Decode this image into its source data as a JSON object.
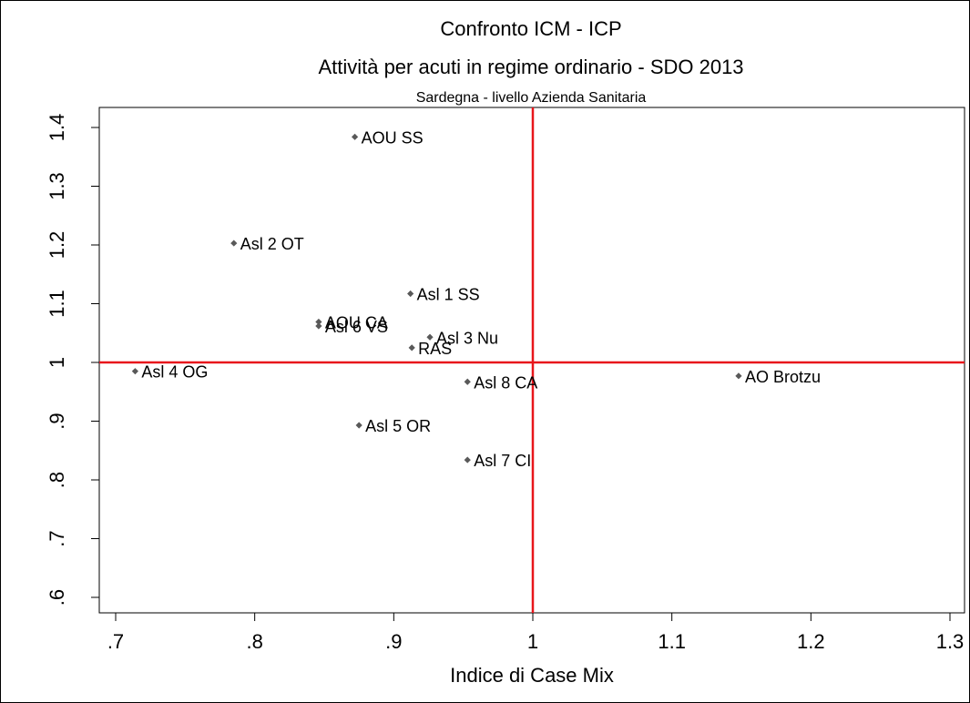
{
  "chart_data": {
    "type": "scatter",
    "title": "Confronto ICM - ICP",
    "subtitle": "Attività per acuti in regime ordinario - SDO 2013",
    "subtitle2": "Sardegna - livello Azienda Sanitaria",
    "xlabel": "Indice di Case Mix",
    "ylabel": "",
    "xlim": [
      0.7,
      1.3
    ],
    "ylim": [
      0.6,
      1.4
    ],
    "xticks": [
      {
        "value": 0.7,
        "label": ".7"
      },
      {
        "value": 0.8,
        "label": ".8"
      },
      {
        "value": 0.9,
        "label": ".9"
      },
      {
        "value": 1.0,
        "label": "1"
      },
      {
        "value": 1.1,
        "label": "1.1"
      },
      {
        "value": 1.2,
        "label": "1.2"
      },
      {
        "value": 1.3,
        "label": "1.3"
      }
    ],
    "yticks": [
      {
        "value": 0.6,
        "label": ".6"
      },
      {
        "value": 0.7,
        "label": ".7"
      },
      {
        "value": 0.8,
        "label": ".8"
      },
      {
        "value": 0.9,
        "label": ".9"
      },
      {
        "value": 1.0,
        "label": "1"
      },
      {
        "value": 1.1,
        "label": "1.1"
      },
      {
        "value": 1.2,
        "label": "1.2"
      },
      {
        "value": 1.3,
        "label": "1.3"
      },
      {
        "value": 1.4,
        "label": "1.4"
      }
    ],
    "reference_lines": {
      "x": 1.0,
      "y": 1.0,
      "color": "#e8161b"
    },
    "grid": false,
    "marker_color": "#595959",
    "points": [
      {
        "label": "AOU SS",
        "x": 0.872,
        "y": 1.384
      },
      {
        "label": "Asl 2 OT",
        "x": 0.785,
        "y": 1.203
      },
      {
        "label": "Asl 1 SS",
        "x": 0.912,
        "y": 1.117
      },
      {
        "label": "AOU CA",
        "x": 0.846,
        "y": 1.069
      },
      {
        "label": "Asl 6 VS",
        "x": 0.846,
        "y": 1.062
      },
      {
        "label": "Asl 3 Nu",
        "x": 0.926,
        "y": 1.043
      },
      {
        "label": "RAS",
        "x": 0.913,
        "y": 1.025
      },
      {
        "label": "Asl 4 OG",
        "x": 0.714,
        "y": 0.985
      },
      {
        "label": "AO Brotzu",
        "x": 1.148,
        "y": 0.977
      },
      {
        "label": "Asl 8 CA",
        "x": 0.953,
        "y": 0.967
      },
      {
        "label": "Asl 5 OR",
        "x": 0.875,
        "y": 0.893
      },
      {
        "label": "Asl 7 CI",
        "x": 0.953,
        "y": 0.834
      }
    ]
  }
}
